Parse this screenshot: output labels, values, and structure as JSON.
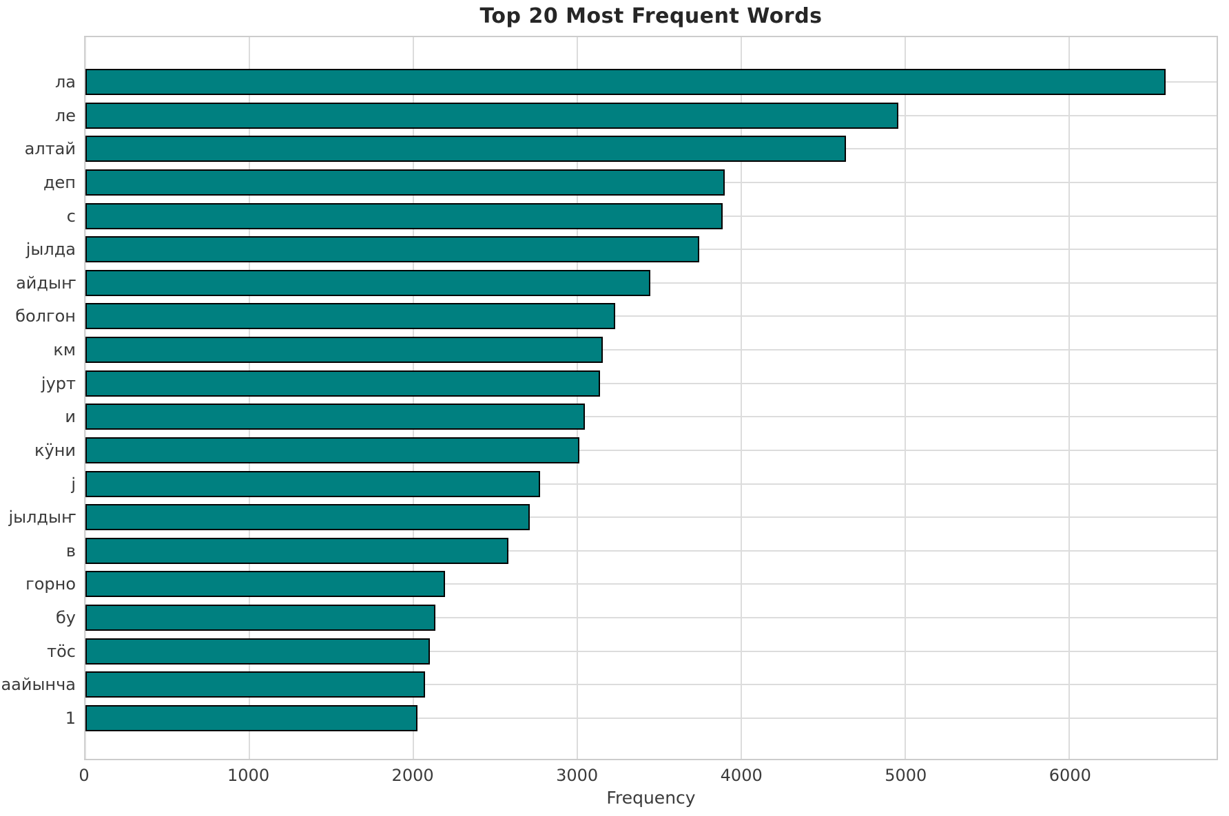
{
  "chart_data": {
    "type": "bar",
    "orientation": "horizontal",
    "title": "Top 20 Most Frequent Words",
    "xlabel": "Frequency",
    "ylabel": "",
    "categories": [
      "ла",
      "ле",
      "алтай",
      "деп",
      "с",
      "јылда",
      "айдыҥ",
      "болгон",
      "км",
      "јурт",
      "и",
      "кӱни",
      "ј",
      "јылдыҥ",
      "в",
      "горно",
      "бу",
      "тӧс",
      "аайынча",
      "1"
    ],
    "values": [
      6590,
      4960,
      4640,
      3900,
      3885,
      3745,
      3445,
      3230,
      3155,
      3140,
      3045,
      3015,
      2775,
      2710,
      2580,
      2195,
      2135,
      2100,
      2070,
      2025
    ],
    "xlim": [
      0,
      6900
    ],
    "xticks": [
      0,
      1000,
      2000,
      3000,
      4000,
      5000,
      6000
    ],
    "grid": true,
    "legend": false,
    "colors": {
      "bar_fill": "#008080",
      "bar_edge": "#000000",
      "grid": "#dcdcdc",
      "spine": "#cccccc",
      "title_text": "#262626",
      "tick_text": "#3b3b3b"
    }
  }
}
